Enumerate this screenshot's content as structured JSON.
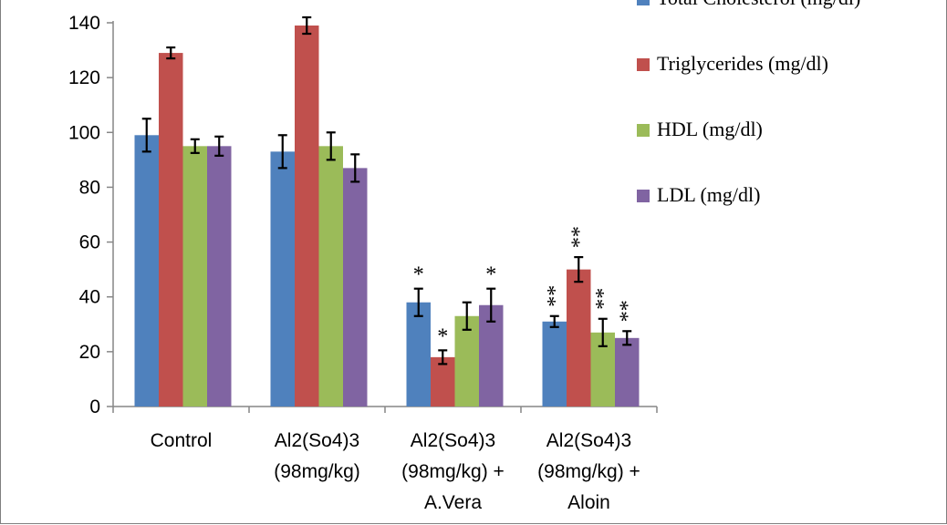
{
  "chart_data": {
    "type": "bar",
    "categories": [
      [
        "Control"
      ],
      [
        "Al2(So4)3",
        "(98mg/kg)"
      ],
      [
        "Al2(So4)3",
        "(98mg/kg) +",
        "A.Vera"
      ],
      [
        "Al2(So4)3",
        "(98mg/kg) +",
        "Aloin"
      ]
    ],
    "ylim": [
      0,
      140
    ],
    "yticks": [
      0,
      20,
      40,
      60,
      80,
      100,
      120,
      140
    ],
    "grid": false,
    "legend_position": "right",
    "series": [
      {
        "name": "Total Cholesterol (mg/dl)",
        "color": "#4f81bd",
        "values": [
          99,
          93,
          38,
          31
        ],
        "errors": [
          6,
          6,
          5,
          2
        ]
      },
      {
        "name": "Triglycerides (mg/dl)",
        "color": "#c0504d",
        "values": [
          129,
          139,
          18,
          50
        ],
        "errors": [
          2,
          3,
          2.5,
          4.5
        ]
      },
      {
        "name": "HDL (mg/dl)",
        "color": "#9bbb59",
        "values": [
          95,
          95,
          33,
          27
        ],
        "errors": [
          2.5,
          5,
          5,
          5
        ]
      },
      {
        "name": "LDL (mg/dl)",
        "color": "#8064a2",
        "values": [
          95,
          87,
          37,
          25
        ],
        "errors": [
          3.5,
          5,
          6,
          2.5
        ]
      }
    ],
    "annotations": [
      {
        "category": 2,
        "series": 0,
        "text": "*"
      },
      {
        "category": 2,
        "series": 1,
        "text": "*"
      },
      {
        "category": 2,
        "series": 3,
        "text": "*"
      },
      {
        "category": 3,
        "series": 0,
        "text": "**"
      },
      {
        "category": 3,
        "series": 1,
        "text": "**"
      },
      {
        "category": 3,
        "series": 2,
        "text": "**"
      },
      {
        "category": 3,
        "series": 3,
        "text": "**"
      }
    ]
  }
}
